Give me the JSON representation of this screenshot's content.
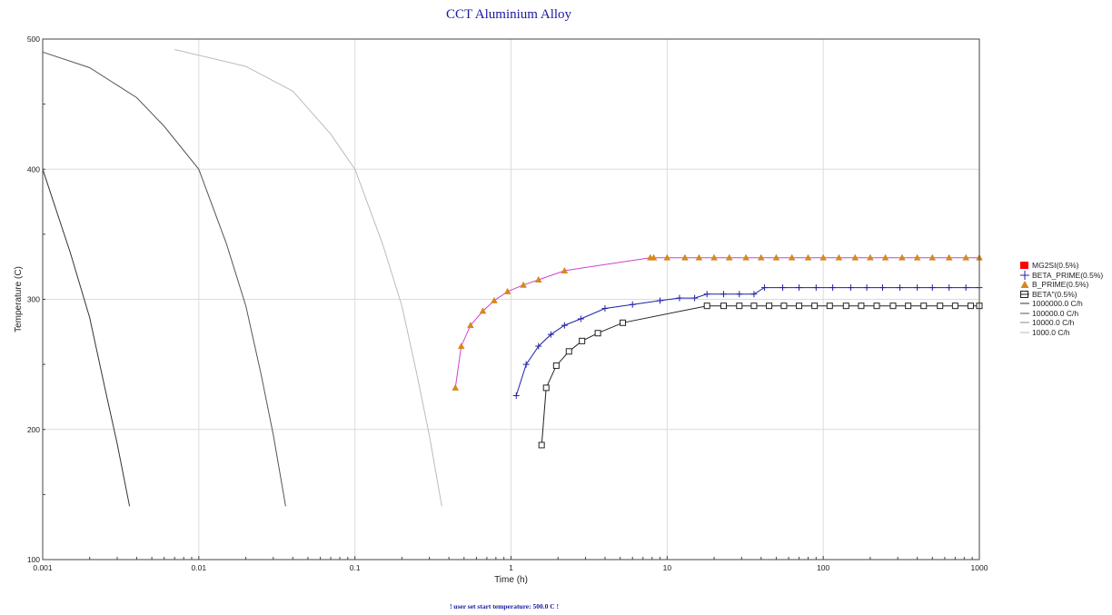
{
  "chart_data": {
    "type": "line",
    "title": "CCT Aluminium Alloy",
    "xlabel": "Time (h)",
    "ylabel": "Temperature (C)",
    "xscale": "log",
    "xlim": [
      0.001,
      1000
    ],
    "ylim": [
      100,
      500
    ],
    "x_ticks": [
      0.001,
      0.01,
      0.1,
      1,
      10,
      100,
      1000
    ],
    "x_tick_labels": [
      "0.001",
      "0.01",
      "0.1",
      "1",
      "10",
      "100",
      "1000"
    ],
    "y_ticks": [
      100,
      200,
      300,
      400,
      500
    ],
    "y_tick_labels": [
      "100",
      "200",
      "300",
      "400",
      "500"
    ],
    "grid": true,
    "legend_position": "right",
    "footnote": "! user set start temperature: 500.0 C !",
    "series": [
      {
        "name": "MG2SI(0.5%)",
        "kind": "phase",
        "color": "#ff0000",
        "marker": "filled-square",
        "points": []
      },
      {
        "name": "BETA_PRIME(0.5%)",
        "kind": "phase",
        "color": "#2020a8",
        "marker": "plus",
        "points": [
          [
            1.08,
            226
          ],
          [
            1.25,
            250
          ],
          [
            1.5,
            264
          ],
          [
            1.8,
            273
          ],
          [
            2.2,
            280
          ],
          [
            2.8,
            285
          ],
          [
            4,
            293
          ],
          [
            6,
            296
          ],
          [
            9,
            299
          ],
          [
            12,
            301
          ],
          [
            15,
            301
          ],
          [
            18,
            304
          ],
          [
            23,
            304
          ],
          [
            29,
            304
          ],
          [
            36,
            304
          ],
          [
            42,
            309
          ],
          [
            55,
            309
          ],
          [
            70,
            309
          ],
          [
            90,
            309
          ],
          [
            115,
            309
          ],
          [
            150,
            309
          ],
          [
            190,
            309
          ],
          [
            240,
            309
          ],
          [
            310,
            309
          ],
          [
            400,
            309
          ],
          [
            500,
            309
          ],
          [
            640,
            309
          ],
          [
            820,
            309
          ],
          [
            1000,
            309
          ]
        ]
      },
      {
        "name": "B_PRIME(0.5%)",
        "kind": "phase",
        "color": "#d48a1e",
        "line_color": "#d040d0",
        "marker": "triangle",
        "points": [
          [
            0.44,
            232
          ],
          [
            0.48,
            264
          ],
          [
            0.55,
            280
          ],
          [
            0.66,
            291
          ],
          [
            0.78,
            299
          ],
          [
            0.95,
            306
          ],
          [
            1.2,
            311
          ],
          [
            1.5,
            315
          ],
          [
            2.2,
            322
          ],
          [
            7.8,
            332
          ],
          [
            8.2,
            332
          ],
          [
            10,
            332
          ],
          [
            13,
            332
          ],
          [
            16,
            332
          ],
          [
            20,
            332
          ],
          [
            25,
            332
          ],
          [
            32,
            332
          ],
          [
            40,
            332
          ],
          [
            50,
            332
          ],
          [
            63,
            332
          ],
          [
            80,
            332
          ],
          [
            100,
            332
          ],
          [
            126,
            332
          ],
          [
            160,
            332
          ],
          [
            200,
            332
          ],
          [
            250,
            332
          ],
          [
            320,
            332
          ],
          [
            400,
            332
          ],
          [
            500,
            332
          ],
          [
            640,
            332
          ],
          [
            820,
            332
          ],
          [
            1000,
            332
          ]
        ]
      },
      {
        "name": "BETA\"(0.5%)",
        "kind": "phase",
        "color": "#222222",
        "marker": "open-square",
        "points": [
          [
            1.57,
            188
          ],
          [
            1.68,
            232
          ],
          [
            1.95,
            249
          ],
          [
            2.35,
            260
          ],
          [
            2.85,
            268
          ],
          [
            3.6,
            274
          ],
          [
            5.2,
            282
          ],
          [
            18,
            295
          ],
          [
            23,
            295
          ],
          [
            29,
            295
          ],
          [
            36,
            295
          ],
          [
            45,
            295
          ],
          [
            56,
            295
          ],
          [
            70,
            295
          ],
          [
            88,
            295
          ],
          [
            110,
            295
          ],
          [
            140,
            295
          ],
          [
            175,
            295
          ],
          [
            220,
            295
          ],
          [
            280,
            295
          ],
          [
            350,
            295
          ],
          [
            440,
            295
          ],
          [
            560,
            295
          ],
          [
            700,
            295
          ],
          [
            880,
            295
          ],
          [
            1000,
            295
          ]
        ]
      },
      {
        "name": "1000000.0 C/h",
        "kind": "cooling",
        "color": "#333333",
        "points": [
          [
            0.001,
            400
          ],
          [
            0.0015,
            336
          ],
          [
            0.002,
            286
          ],
          [
            0.0025,
            232
          ],
          [
            0.003,
            189
          ],
          [
            0.0036,
            141
          ]
        ]
      },
      {
        "name": "100000.0 C/h",
        "kind": "cooling",
        "color": "#555555",
        "points": [
          [
            0.001,
            490
          ],
          [
            0.002,
            478
          ],
          [
            0.004,
            455
          ],
          [
            0.006,
            433
          ],
          [
            0.01,
            400
          ],
          [
            0.015,
            343
          ],
          [
            0.02,
            295
          ],
          [
            0.025,
            243
          ],
          [
            0.03,
            196
          ],
          [
            0.036,
            141
          ]
        ]
      },
      {
        "name": "10000.0 C/h",
        "kind": "cooling",
        "color": "#888888",
        "points": []
      },
      {
        "name": "1000.0 C/h",
        "kind": "cooling",
        "color": "#bbbbbb",
        "points": [
          [
            0.007,
            492
          ],
          [
            0.02,
            479
          ],
          [
            0.04,
            460
          ],
          [
            0.07,
            427
          ],
          [
            0.1,
            400
          ],
          [
            0.15,
            343
          ],
          [
            0.2,
            295
          ],
          [
            0.25,
            242
          ],
          [
            0.3,
            195
          ],
          [
            0.36,
            141
          ]
        ]
      }
    ]
  }
}
